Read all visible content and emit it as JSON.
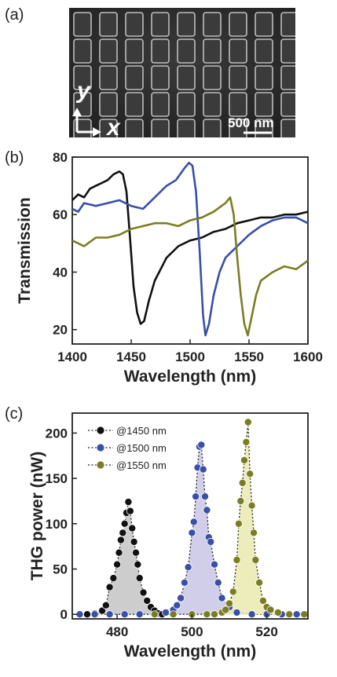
{
  "panels": {
    "a": {
      "label": "(a)",
      "scale_bar_text": "500 nm",
      "axis_x_label": "x",
      "axis_y_label": "y"
    },
    "b": {
      "label": "(b)"
    },
    "c": {
      "label": "(c)"
    }
  },
  "chart_data": [
    {
      "id": "transmission",
      "type": "line",
      "title": "",
      "xlabel": "Wavelength (nm)",
      "ylabel": "Transmission",
      "xlim": [
        1400,
        1600
      ],
      "ylim": [
        15,
        80
      ],
      "xticks": [
        1400,
        1450,
        1500,
        1550,
        1600
      ],
      "yticks": [
        20,
        40,
        60,
        80
      ],
      "grid": false,
      "series": [
        {
          "color": "#111111",
          "x": [
            1400,
            1405,
            1410,
            1415,
            1420,
            1425,
            1430,
            1435,
            1440,
            1443,
            1446,
            1449,
            1452,
            1455,
            1458,
            1461,
            1465,
            1470,
            1480,
            1490,
            1500,
            1510,
            1520,
            1530,
            1540,
            1550,
            1560,
            1570,
            1580,
            1590,
            1600
          ],
          "y": [
            65,
            67,
            66,
            69,
            70,
            71,
            72,
            74,
            75,
            74,
            68,
            52,
            35,
            26,
            22,
            23,
            30,
            37,
            45,
            49,
            51,
            52,
            54,
            55,
            57,
            58,
            59,
            59,
            60,
            60,
            61
          ]
        },
        {
          "color": "#3a4fa8",
          "x": [
            1400,
            1405,
            1410,
            1420,
            1430,
            1440,
            1450,
            1460,
            1470,
            1480,
            1488,
            1495,
            1499,
            1502,
            1505,
            1508,
            1511,
            1513,
            1516,
            1520,
            1525,
            1530,
            1535,
            1540,
            1550,
            1560,
            1570,
            1580,
            1590,
            1600
          ],
          "y": [
            62,
            61,
            64,
            63,
            64,
            65,
            63,
            62,
            66,
            70,
            72,
            76,
            78,
            77,
            68,
            48,
            25,
            18,
            22,
            32,
            40,
            45,
            47,
            49,
            53,
            56,
            58,
            59,
            59,
            57
          ]
        },
        {
          "color": "#7b7d22",
          "x": [
            1400,
            1410,
            1420,
            1430,
            1440,
            1450,
            1460,
            1470,
            1480,
            1490,
            1500,
            1510,
            1520,
            1530,
            1534,
            1537,
            1540,
            1543,
            1546,
            1549,
            1552,
            1556,
            1560,
            1570,
            1580,
            1590,
            1600
          ],
          "y": [
            51,
            49,
            52,
            52,
            53,
            55,
            56,
            57,
            57,
            56,
            58,
            59,
            61,
            64,
            66,
            60,
            45,
            32,
            22,
            18,
            24,
            32,
            37,
            40,
            42,
            41,
            44
          ]
        }
      ]
    },
    {
      "id": "thg",
      "type": "scatter",
      "title": "",
      "xlabel": "Wavelength (nm)",
      "ylabel": "THG power (nW)",
      "xlim": [
        468,
        531
      ],
      "ylim": [
        -5,
        222
      ],
      "xticks": [
        480,
        500,
        520
      ],
      "yticks": [
        0,
        50,
        100,
        150,
        200
      ],
      "grid": false,
      "legend_position": "top-left",
      "series": [
        {
          "name": "@1450 nm",
          "color": "#111111",
          "fill": "#c4c4c4",
          "x": [
            470,
            472,
            474,
            476,
            477,
            478,
            479,
            480,
            480.5,
            481,
            481.5,
            482,
            482.5,
            483,
            483.5,
            484,
            484.5,
            485,
            485.5,
            486,
            487,
            488,
            489,
            490,
            491,
            492
          ],
          "y": [
            0,
            0,
            1,
            4,
            10,
            30,
            40,
            55,
            68,
            82,
            90,
            100,
            112,
            124,
            114,
            95,
            80,
            68,
            55,
            40,
            24,
            15,
            8,
            4,
            1,
            0
          ]
        },
        {
          "name": "@1500 nm",
          "color": "#3a4fa8",
          "fill": "#c9c5e6",
          "x": [
            470,
            474,
            478,
            482,
            486,
            490,
            493,
            495,
            496,
            497,
            498,
            499,
            500,
            500.5,
            501,
            501.5,
            502,
            502.5,
            503,
            503.5,
            504,
            504.5,
            505,
            506,
            507,
            508,
            510,
            512,
            516,
            520,
            524,
            528,
            531
          ],
          "y": [
            0,
            0,
            0,
            0,
            0,
            0,
            2,
            5,
            10,
            18,
            35,
            52,
            90,
            102,
            130,
            162,
            185,
            187,
            160,
            130,
            115,
            85,
            80,
            55,
            35,
            18,
            8,
            2,
            0,
            0,
            0,
            0,
            0
          ]
        },
        {
          "name": "@1550 nm",
          "color": "#7b7d22",
          "fill": "#eaeab0",
          "x": [
            490,
            495,
            500,
            504,
            506,
            508,
            509,
            510,
            511,
            512,
            512.5,
            513,
            513.5,
            514,
            514.5,
            515,
            515.5,
            516,
            516.5,
            517,
            518,
            519,
            520,
            521,
            523,
            526,
            530
          ],
          "y": [
            0,
            0,
            0,
            0,
            0,
            2,
            5,
            12,
            25,
            60,
            100,
            125,
            145,
            170,
            190,
            212,
            155,
            120,
            90,
            60,
            35,
            15,
            8,
            5,
            2,
            0,
            0
          ]
        }
      ]
    }
  ]
}
